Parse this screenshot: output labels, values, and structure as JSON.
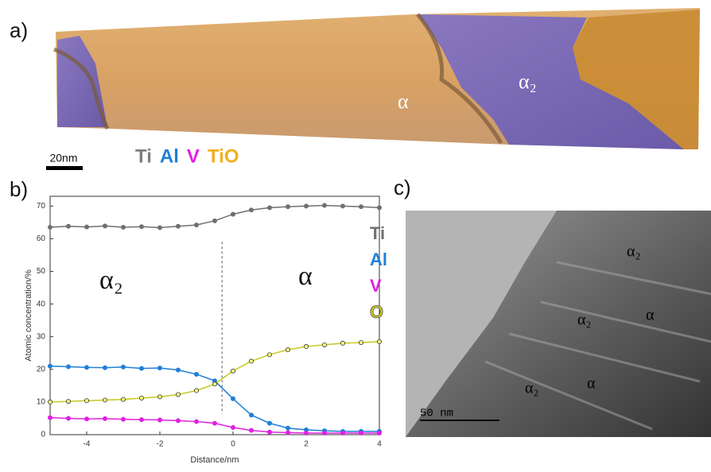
{
  "panel_a": {
    "label": "a)",
    "scale_bar": "20nm",
    "legend": [
      {
        "name": "Ti",
        "color": "#7f7f7f"
      },
      {
        "name": "Al",
        "color": "#1f7fd8"
      },
      {
        "name": "V",
        "color": "#e020e0"
      },
      {
        "name": "TiO",
        "color": "#f0b020"
      }
    ],
    "phase_labels": [
      "α",
      "α₂"
    ]
  },
  "chart_data": {
    "type": "line",
    "label": "b)",
    "x_label": "Distance/nm",
    "y_label": "Atomic concentration/%",
    "x": [
      -5,
      -4.5,
      -4,
      -3.5,
      -3,
      -2.5,
      -2,
      -1.5,
      -1,
      -0.5,
      0,
      0.5,
      1,
      1.5,
      2,
      2.5,
      3,
      3.5,
      4
    ],
    "series": [
      {
        "name": "Ti",
        "color": "#707070",
        "values": [
          63.5,
          63.8,
          63.6,
          63.9,
          63.5,
          63.7,
          63.4,
          63.8,
          64.2,
          65.5,
          67.5,
          68.8,
          69.5,
          69.8,
          70,
          70.2,
          70,
          69.8,
          69.5
        ]
      },
      {
        "name": "Al",
        "color": "#1f7fd8",
        "values": [
          21,
          20.8,
          20.6,
          20.5,
          20.7,
          20.3,
          20.4,
          19.8,
          18.5,
          16.5,
          11,
          6,
          3.5,
          2,
          1.5,
          1.2,
          1,
          1,
          1
        ]
      },
      {
        "name": "V",
        "color": "#e020e0",
        "values": [
          5.2,
          5,
          4.8,
          4.9,
          4.7,
          4.6,
          4.5,
          4.3,
          4,
          3.5,
          2.2,
          1.3,
          0.8,
          0.6,
          0.5,
          0.5,
          0.5,
          0.5,
          0.5
        ]
      },
      {
        "name": "O",
        "color": "#c8c820",
        "values": [
          10,
          10.2,
          10.4,
          10.6,
          10.8,
          11.2,
          11.6,
          12.3,
          13.5,
          15.5,
          19.5,
          22.5,
          24.5,
          26,
          27,
          27.5,
          28,
          28.2,
          28.5
        ]
      }
    ],
    "xlim": [
      -5,
      4
    ],
    "ylim": [
      0,
      73
    ],
    "xticks": [
      -4,
      -2,
      0,
      2,
      4
    ],
    "yticks": [
      0,
      10,
      20,
      30,
      40,
      50,
      60,
      70
    ],
    "legend": "right",
    "divider_x": -0.3,
    "annotations": [
      "α₂",
      "α"
    ]
  },
  "panel_c": {
    "label": "c)",
    "scale_bar": "50 nm",
    "phase_labels": [
      "α₂",
      "α₂",
      "α",
      "α₂",
      "α"
    ]
  }
}
